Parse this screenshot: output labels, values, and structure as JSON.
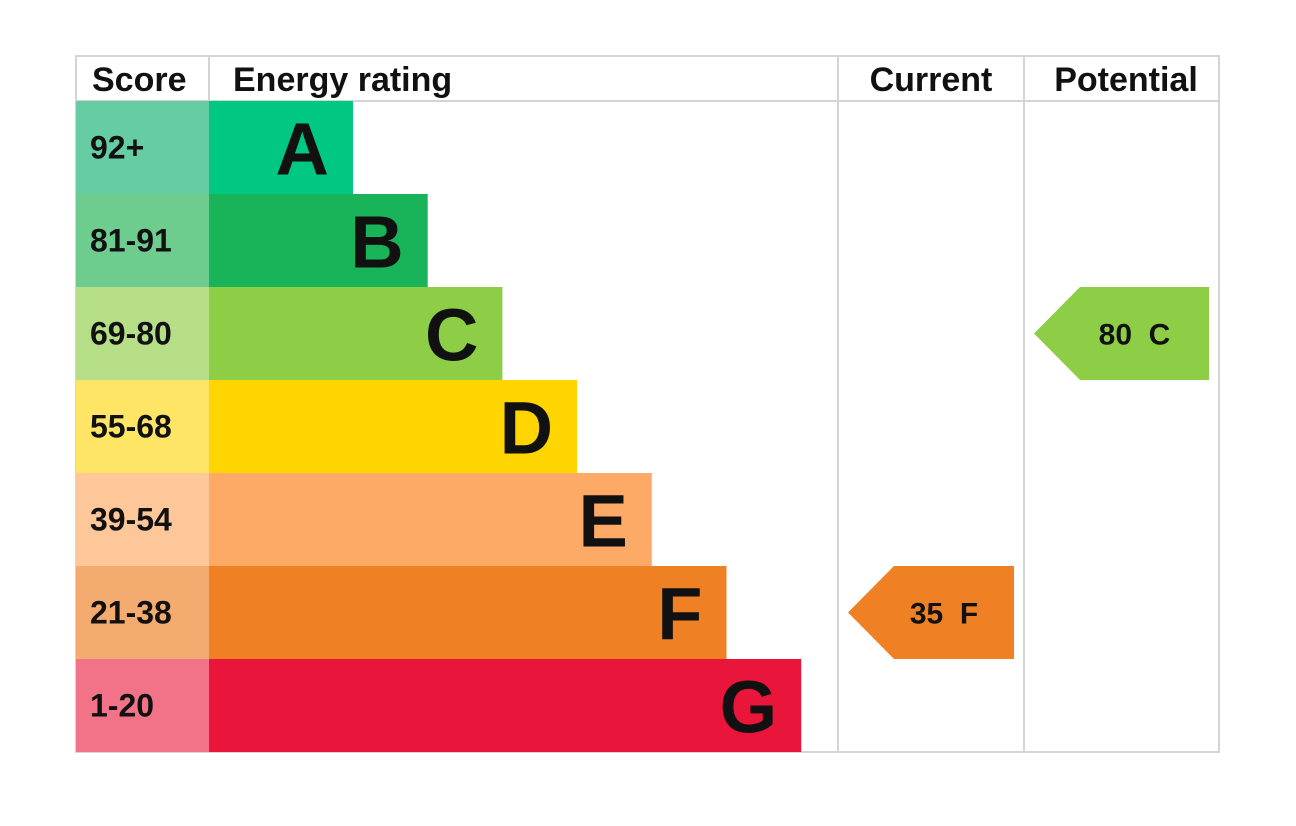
{
  "chart_data": {
    "type": "bar",
    "headers": {
      "score": "Score",
      "rating": "Energy rating",
      "current": "Current",
      "potential": "Potential"
    },
    "bands": [
      {
        "letter": "A",
        "range": "92+",
        "color": "#00c781",
        "score_color": "#66cca4"
      },
      {
        "letter": "B",
        "range": "81-91",
        "color": "#19b459",
        "score_color": "#6fcc8f"
      },
      {
        "letter": "C",
        "range": "69-80",
        "color": "#8dce46",
        "score_color": "#b5de87"
      },
      {
        "letter": "D",
        "range": "55-68",
        "color": "#ffd500",
        "score_color": "#ffe566"
      },
      {
        "letter": "E",
        "range": "39-54",
        "color": "#fcaa65",
        "score_color": "#fdc79a"
      },
      {
        "letter": "F",
        "range": "21-38",
        "color": "#ef8023",
        "score_color": "#f4ab6f"
      },
      {
        "letter": "G",
        "range": "1-20",
        "color": "#e9153b",
        "score_color": "#f27288"
      }
    ],
    "current": {
      "value": 35,
      "letter": "F",
      "label": "35  F",
      "color": "#ef8023"
    },
    "potential": {
      "value": 80,
      "letter": "C",
      "label": "80  C",
      "color": "#8dce46"
    }
  }
}
